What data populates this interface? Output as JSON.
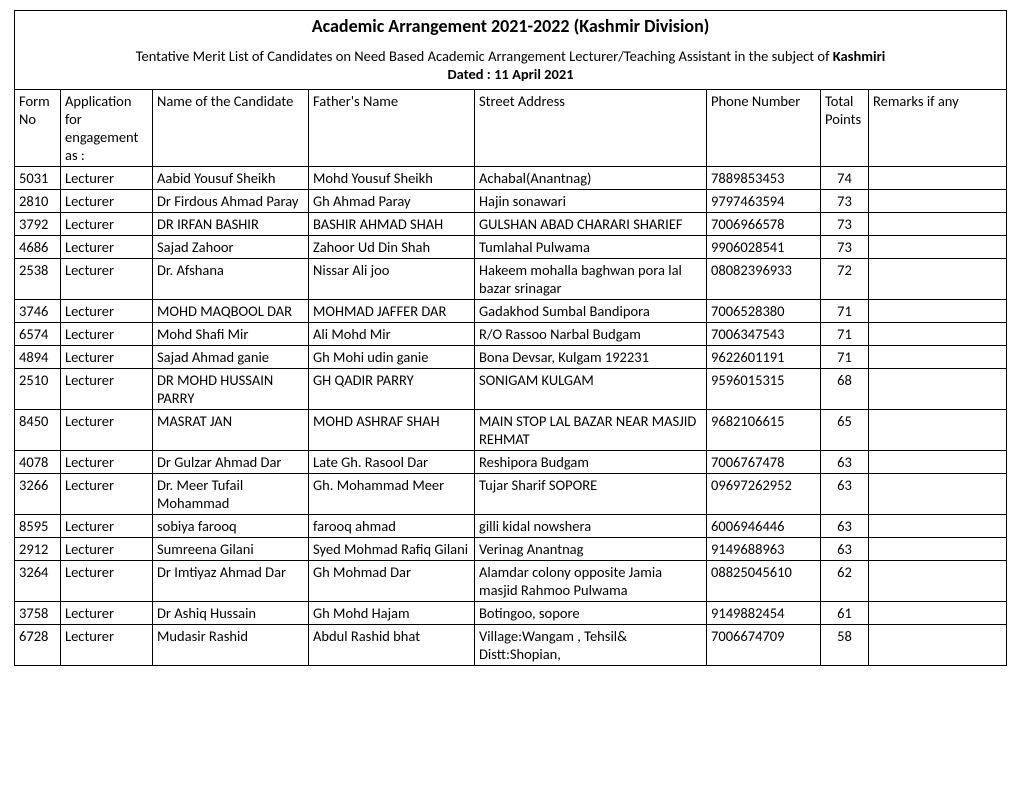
{
  "title": "Academic Arrangement 2021-2022 (Kashmir Division)",
  "subtitle_pre": "Tentative Merit List of Candidates on Need Based Academic Arrangement Lecturer/Teaching Assistant in the subject of ",
  "subtitle_bold": "Kashmiri",
  "dated": "Dated : 11 April 2021",
  "headers": {
    "form": "Form No",
    "app": "Application for engagement as :",
    "name": "Name of the Candidate",
    "father": "Father's Name",
    "addr": "Street Address",
    "phone": "Phone Number",
    "points": "Total Points",
    "remarks": "Remarks if any"
  },
  "rows": [
    {
      "form": "5031",
      "app": "Lecturer",
      "name": "Aabid Yousuf Sheikh",
      "father": "Mohd Yousuf Sheikh",
      "addr": "Achabal(Anantnag)",
      "phone": "7889853453",
      "points": "74",
      "remarks": ""
    },
    {
      "form": "2810",
      "app": "Lecturer",
      "name": "Dr Firdous Ahmad Paray",
      "father": "Gh Ahmad Paray",
      "addr": "Hajin sonawari",
      "phone": "9797463594",
      "points": "73",
      "remarks": ""
    },
    {
      "form": "3792",
      "app": "Lecturer",
      "name": "DR IRFAN BASHIR",
      "father": "BASHIR AHMAD SHAH",
      "addr": "GULSHAN ABAD CHARARI SHARIEF",
      "phone": "7006966578",
      "points": "73",
      "remarks": ""
    },
    {
      "form": "4686",
      "app": "Lecturer",
      "name": "Sajad Zahoor",
      "father": "Zahoor Ud Din Shah",
      "addr": "Tumlahal Pulwama",
      "phone": "9906028541",
      "points": "73",
      "remarks": ""
    },
    {
      "form": "2538",
      "app": "Lecturer",
      "name": "Dr. Afshana",
      "father": "Nissar Ali joo",
      "addr": "Hakeem mohalla baghwan pora lal bazar srinagar",
      "phone": "08082396933",
      "points": "72",
      "remarks": ""
    },
    {
      "form": "3746",
      "app": "Lecturer",
      "name": "MOHD MAQBOOL DAR",
      "father": "MOHMAD JAFFER DAR",
      "addr": "Gadakhod Sumbal Bandipora",
      "phone": "7006528380",
      "points": "71",
      "remarks": ""
    },
    {
      "form": "6574",
      "app": "Lecturer",
      "name": "Mohd Shafi Mir",
      "father": "Ali Mohd Mir",
      "addr": "R/O Rassoo Narbal Budgam",
      "phone": "7006347543",
      "points": "71",
      "remarks": ""
    },
    {
      "form": "4894",
      "app": "Lecturer",
      "name": "Sajad Ahmad ganie",
      "father": "Gh Mohi udin ganie",
      "addr": "Bona Devsar, Kulgam 192231",
      "phone": "9622601191",
      "points": "71",
      "remarks": ""
    },
    {
      "form": "2510",
      "app": "Lecturer",
      "name": "DR MOHD HUSSAIN PARRY",
      "father": "GH QADIR PARRY",
      "addr": "SONIGAM KULGAM",
      "phone": "9596015315",
      "points": "68",
      "remarks": ""
    },
    {
      "form": "8450",
      "app": "Lecturer",
      "name": "MASRAT JAN",
      "father": "MOHD ASHRAF SHAH",
      "addr": "MAIN STOP LAL BAZAR NEAR MASJID REHMAT",
      "phone": "9682106615",
      "points": "65",
      "remarks": ""
    },
    {
      "form": "4078",
      "app": "Lecturer",
      "name": "Dr Gulzar Ahmad Dar",
      "father": "Late Gh. Rasool Dar",
      "addr": "Reshipora Budgam",
      "phone": "7006767478",
      "points": "63",
      "remarks": ""
    },
    {
      "form": "3266",
      "app": "Lecturer",
      "name": "Dr. Meer Tufail Mohammad",
      "father": "Gh. Mohammad Meer",
      "addr": "Tujar Sharif SOPORE",
      "phone": "09697262952",
      "points": "63",
      "remarks": ""
    },
    {
      "form": "8595",
      "app": "Lecturer",
      "name": "sobiya farooq",
      "father": "farooq ahmad",
      "addr": "gilli kidal nowshera",
      "phone": "6006946446",
      "points": "63",
      "remarks": ""
    },
    {
      "form": "2912",
      "app": "Lecturer",
      "name": "Sumreena Gilani",
      "father": "Syed Mohmad Rafiq Gilani",
      "addr": "Verinag Anantnag",
      "phone": "9149688963",
      "points": "63",
      "remarks": ""
    },
    {
      "form": "3264",
      "app": "Lecturer",
      "name": "Dr Imtiyaz Ahmad Dar",
      "father": "Gh Mohmad Dar",
      "addr": "Alamdar colony opposite Jamia masjid Rahmoo Pulwama",
      "phone": "08825045610",
      "points": "62",
      "remarks": ""
    },
    {
      "form": "3758",
      "app": "Lecturer",
      "name": "Dr Ashiq Hussain",
      "father": "Gh Mohd Hajam",
      "addr": "Botingoo, sopore",
      "phone": "9149882454",
      "points": "61",
      "remarks": ""
    },
    {
      "form": "6728",
      "app": "Lecturer",
      "name": "Mudasir Rashid",
      "father": "Abdul Rashid bhat",
      "addr": "Village:Wangam , Tehsil& Distt:Shopian,",
      "phone": "7006674709",
      "points": "58",
      "remarks": ""
    }
  ]
}
